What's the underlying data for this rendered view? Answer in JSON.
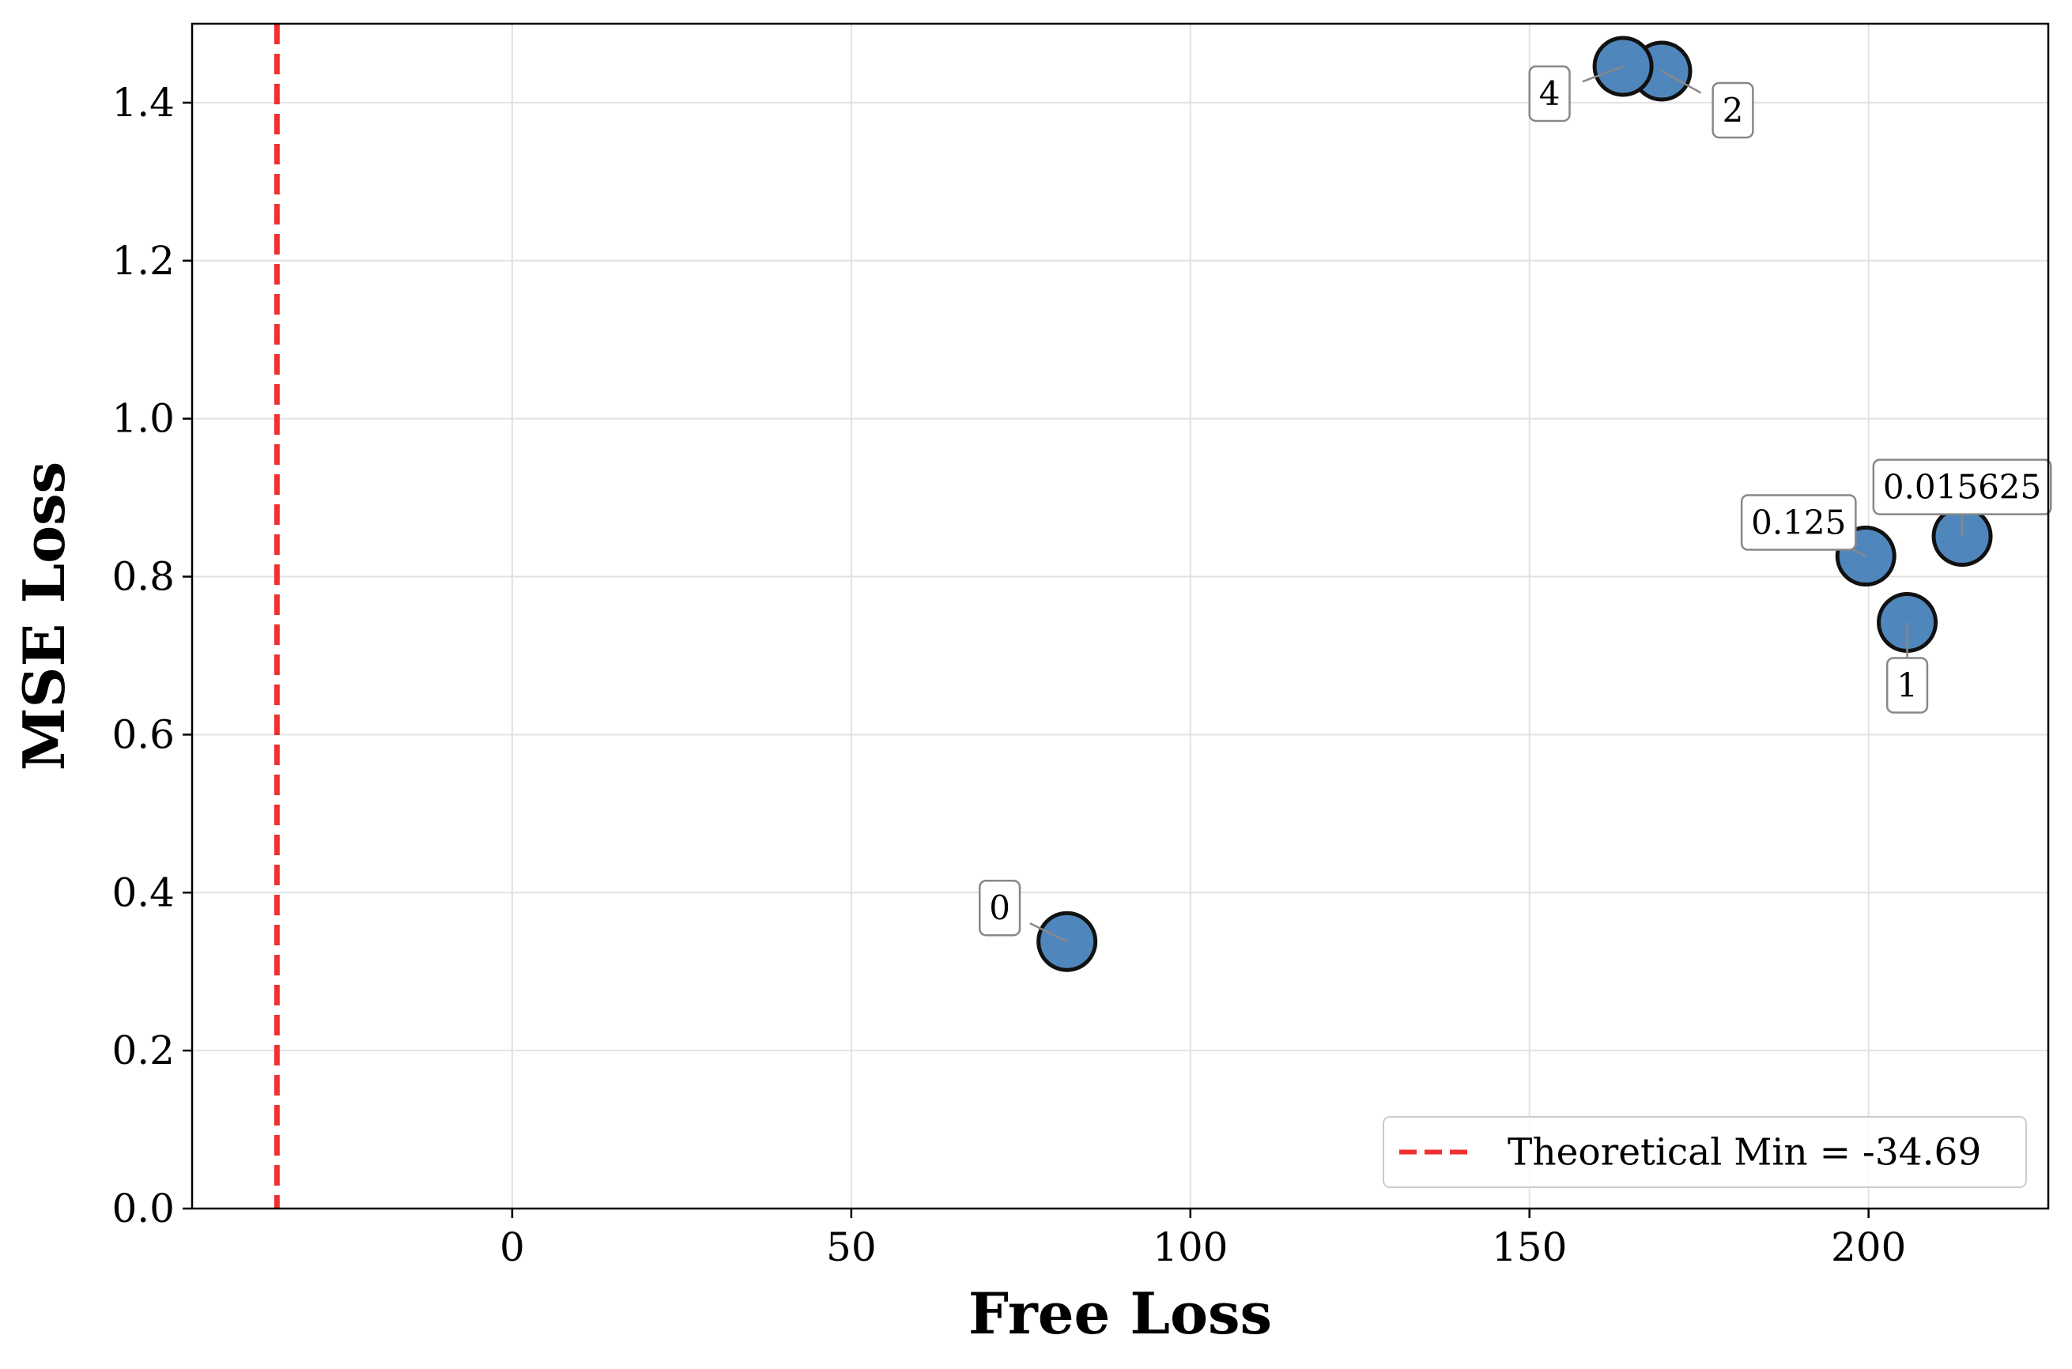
{
  "chart_data": {
    "type": "scatter",
    "title": "",
    "xlabel": "Free Loss",
    "ylabel": "MSE Loss",
    "xlim": [
      -47.2,
      226.5
    ],
    "ylim": [
      0.0,
      1.5
    ],
    "xticks": [
      0,
      50,
      100,
      150,
      200
    ],
    "xtick_labels": [
      "0",
      "50",
      "100",
      "150",
      "200"
    ],
    "yticks": [
      0.0,
      0.2,
      0.4,
      0.6,
      0.8,
      1.0,
      1.2,
      1.4
    ],
    "ytick_labels": [
      "0.0",
      "0.2",
      "0.4",
      "0.6",
      "0.8",
      "1.0",
      "1.2",
      "1.4"
    ],
    "grid": true,
    "legend_position": "bottom-right",
    "marker_color": "#4f87bc",
    "marker_edge_color": "#111111",
    "points": [
      {
        "label": "0",
        "x": 81.8,
        "y": 0.338,
        "label_offset": "upper-left"
      },
      {
        "label": "1",
        "x": 205.7,
        "y": 0.742,
        "label_offset": "below"
      },
      {
        "label": "0.125",
        "x": 199.6,
        "y": 0.826,
        "label_offset": "upper-left"
      },
      {
        "label": "0.015625",
        "x": 213.8,
        "y": 0.851,
        "label_offset": "above"
      },
      {
        "label": "2",
        "x": 169.5,
        "y": 1.44,
        "label_offset": "lower-right"
      },
      {
        "label": "4",
        "x": 163.8,
        "y": 1.446,
        "label_offset": "lower-left"
      }
    ],
    "reference_line": {
      "x": -34.69,
      "color": "#f03030",
      "style": "dashed",
      "legend_label": "Theoretical Min = -34.69"
    }
  }
}
